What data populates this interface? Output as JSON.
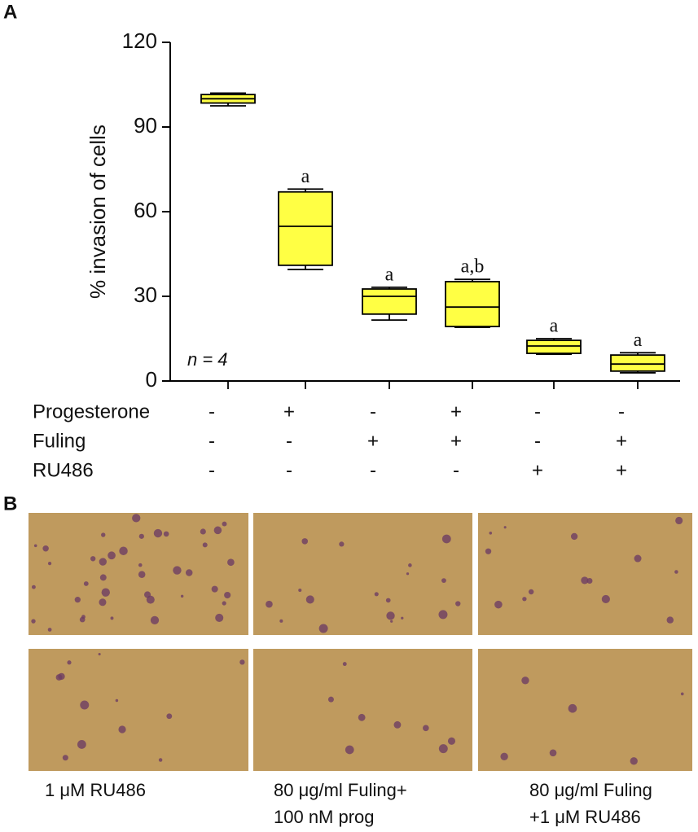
{
  "chart_data": {
    "type": "box",
    "y_label": "% invasion of cells",
    "ylim": [
      0,
      120
    ],
    "yticks": [
      0,
      30,
      60,
      90,
      120
    ],
    "color": "#ffff44",
    "boxes": [
      {
        "min": 97.5,
        "q1": 98.5,
        "median": 100,
        "q3": 101.5,
        "max": 102
      },
      {
        "min": 39.5,
        "q1": 41,
        "median": 54.8,
        "q3": 67,
        "max": 68
      },
      {
        "min": 21.6,
        "q1": 23.7,
        "median": 30,
        "q3": 32.6,
        "max": 33.2
      },
      {
        "min": 19,
        "q1": 19.3,
        "median": 26.2,
        "q3": 35.2,
        "max": 36
      },
      {
        "min": 9.5,
        "q1": 9.8,
        "median": 12.4,
        "q3": 14.4,
        "max": 15
      },
      {
        "min": 2.9,
        "q1": 3.5,
        "median": 6,
        "q3": 9.2,
        "max": 10
      }
    ],
    "annotations": [
      null,
      "a",
      "a",
      "a,b",
      "a",
      "a"
    ],
    "n_label": "n = 4",
    "treatments": [
      {
        "name": "Progesterone",
        "signs": [
          "-",
          "+",
          "-",
          "+",
          "-",
          "-"
        ]
      },
      {
        "name": "Fuling",
        "signs": [
          "-",
          "-",
          "+",
          "+",
          "-",
          "+"
        ]
      },
      {
        "name": "RU486",
        "signs": [
          "-",
          "-",
          "-",
          "-",
          "+",
          "+"
        ]
      }
    ]
  },
  "panel_labels": [
    "A",
    "B"
  ],
  "captions": [
    [
      "1 μM  RU486"
    ],
    [
      "80 μg/ml Fuling+",
      "100 nM prog"
    ],
    [
      "80 μg/ml Fuling",
      "+1 μM RU486"
    ]
  ]
}
